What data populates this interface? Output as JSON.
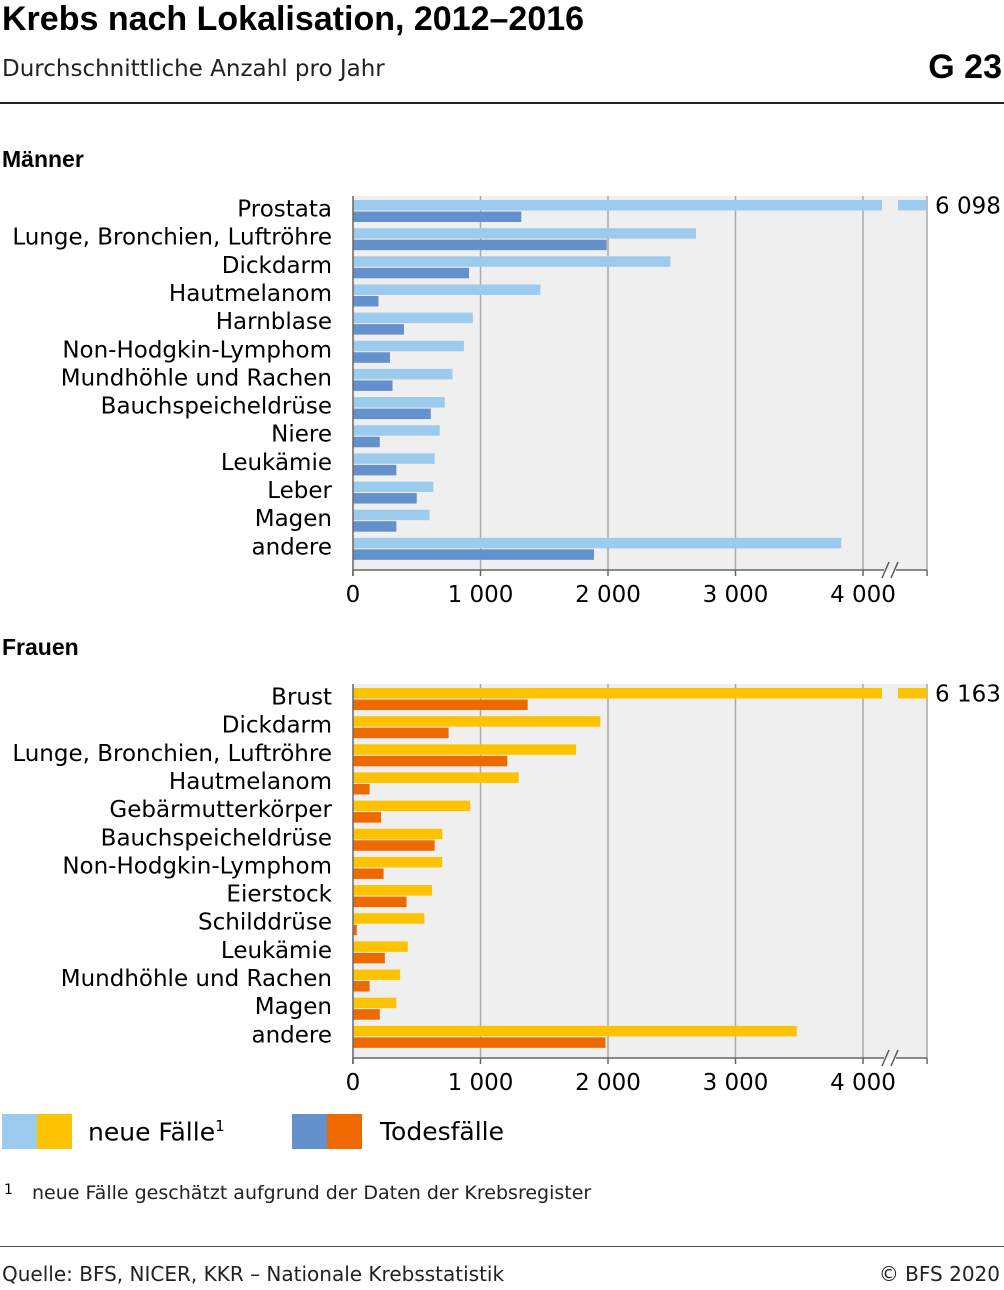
{
  "header": {
    "title": "Krebs nach Lokalisation, 2012–2016",
    "subtitle": "Durchschnittliche Anzahl pro Jahr",
    "code": "G 23"
  },
  "legend": {
    "new_cases_label": "neue Fälle",
    "new_cases_footnote_ref": "1",
    "deaths_label": "Todesfälle"
  },
  "footnote": {
    "mark": "1",
    "text": "neue Fälle geschätzt aufgrund der Daten der Krebsregister"
  },
  "footer": {
    "source": "Quelle: BFS, NICER, KKR – Nationale Krebsstatistik",
    "copyright": "© BFS 2020"
  },
  "colors": {
    "men_new": "#9dcbee",
    "men_death": "#6491cc",
    "women_new": "#fdc300",
    "women_death": "#ee6a00",
    "plot_bg": "#efefef",
    "grid": "#a9a9a9"
  },
  "chart_data": [
    {
      "type": "bar",
      "orientation": "horizontal",
      "panel_title": "Männer",
      "xlim": [
        0,
        4500
      ],
      "xticks": [
        0,
        1000,
        2000,
        3000,
        4000
      ],
      "xtick_labels": [
        "0",
        "1 000",
        "2 000",
        "3 000",
        "4 000"
      ],
      "axis_break": true,
      "grid": true,
      "categories": [
        "Prostata",
        "Lunge, Bronchien, Luftröhre",
        "Dickdarm",
        "Hautmelanom",
        "Harnblase",
        "Non-Hodgkin-Lymphom",
        "Mundhöhle und Rachen",
        "Bauchspeicheldrüse",
        "Niere",
        "Leukämie",
        "Leber",
        "Magen",
        "andere"
      ],
      "series": [
        {
          "name": "neue Fälle",
          "values": [
            6098,
            2690,
            2490,
            1470,
            940,
            870,
            780,
            720,
            680,
            640,
            630,
            600,
            3830
          ]
        },
        {
          "name": "Todesfälle",
          "values": [
            1320,
            1990,
            910,
            200,
            400,
            290,
            310,
            610,
            210,
            340,
            500,
            340,
            1890
          ]
        }
      ],
      "broken_value_labels": [
        "6 098"
      ]
    },
    {
      "type": "bar",
      "orientation": "horizontal",
      "panel_title": "Frauen",
      "xlim": [
        0,
        4500
      ],
      "xticks": [
        0,
        1000,
        2000,
        3000,
        4000
      ],
      "xtick_labels": [
        "0",
        "1 000",
        "2 000",
        "3 000",
        "4 000"
      ],
      "axis_break": true,
      "grid": true,
      "categories": [
        "Brust",
        "Dickdarm",
        "Lunge, Bronchien, Luftröhre",
        "Hautmelanom",
        "Gebärmutterkörper",
        "Bauchspeicheldrüse",
        "Non-Hodgkin-Lymphom",
        "Eierstock",
        "Schilddrüse",
        "Leukämie",
        "Mundhöhle und Rachen",
        "Magen",
        "andere"
      ],
      "series": [
        {
          "name": "neue Fälle",
          "values": [
            6163,
            1940,
            1750,
            1300,
            920,
            700,
            700,
            620,
            560,
            430,
            370,
            340,
            3480
          ]
        },
        {
          "name": "Todesfälle",
          "values": [
            1370,
            750,
            1210,
            130,
            220,
            640,
            240,
            420,
            30,
            250,
            130,
            210,
            1980
          ]
        }
      ],
      "broken_value_labels": [
        "6 163"
      ]
    }
  ]
}
